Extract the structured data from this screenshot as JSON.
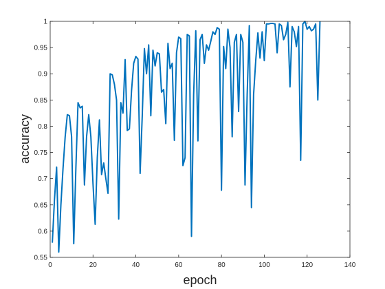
{
  "chart_data": {
    "type": "line",
    "title": "",
    "xlabel": "epoch",
    "ylabel": "accuracy",
    "xlim": [
      0,
      140
    ],
    "ylim": [
      0.55,
      1
    ],
    "x_ticks": [
      0,
      20,
      40,
      60,
      80,
      100,
      120,
      140
    ],
    "y_ticks": [
      0.55,
      0.6,
      0.65,
      0.7,
      0.75,
      0.8,
      0.85,
      0.9,
      0.95,
      1
    ],
    "x_tick_labels": [
      "0",
      "20",
      "40",
      "60",
      "80",
      "100",
      "120",
      "140"
    ],
    "y_tick_labels": [
      "0.55",
      "0.6",
      "0.65",
      "0.7",
      "0.75",
      "0.8",
      "0.85",
      "0.9",
      "0.95",
      "1"
    ],
    "grid": false,
    "box": true,
    "series": [
      {
        "color": "#0072BD",
        "x": [
          1,
          2,
          3,
          4,
          5,
          6,
          7,
          8,
          9,
          10,
          11,
          12,
          13,
          14,
          15,
          16,
          17,
          18,
          19,
          20,
          21,
          22,
          23,
          24,
          25,
          26,
          27,
          28,
          29,
          30,
          31,
          32,
          33,
          34,
          35,
          36,
          37,
          38,
          39,
          40,
          41,
          42,
          43,
          44,
          45,
          46,
          47,
          48,
          49,
          50,
          51,
          52,
          53,
          54,
          55,
          56,
          57,
          58,
          59,
          60,
          61,
          62,
          63,
          64,
          65,
          66,
          67,
          68,
          69,
          70,
          71,
          72,
          73,
          74,
          75,
          76,
          77,
          78,
          79,
          80,
          81,
          82,
          83,
          84,
          85,
          86,
          87,
          88,
          89,
          90,
          91,
          92,
          93,
          94,
          95,
          96,
          97,
          98,
          99,
          100,
          101,
          102,
          103,
          104,
          105,
          106,
          107,
          108,
          109,
          110,
          111,
          112,
          113,
          114,
          115,
          116,
          117,
          118,
          119,
          120,
          121,
          122,
          123,
          124,
          125,
          126
        ],
        "values": [
          0.578,
          0.66,
          0.722,
          0.56,
          0.65,
          0.72,
          0.78,
          0.822,
          0.82,
          0.78,
          0.576,
          0.72,
          0.845,
          0.835,
          0.838,
          0.688,
          0.78,
          0.822,
          0.78,
          0.69,
          0.613,
          0.74,
          0.812,
          0.708,
          0.73,
          0.7,
          0.672,
          0.9,
          0.898,
          0.88,
          0.85,
          0.623,
          0.845,
          0.825,
          0.927,
          0.792,
          0.795,
          0.868,
          0.92,
          0.933,
          0.928,
          0.71,
          0.82,
          0.948,
          0.9,
          0.955,
          0.82,
          0.945,
          0.915,
          0.94,
          0.938,
          0.865,
          0.87,
          0.805,
          0.958,
          0.91,
          0.92,
          0.773,
          0.94,
          0.97,
          0.967,
          0.725,
          0.74,
          0.975,
          0.972,
          0.59,
          0.86,
          0.982,
          0.772,
          0.965,
          0.975,
          0.92,
          0.955,
          0.945,
          0.962,
          0.98,
          0.975,
          0.988,
          0.985,
          0.678,
          0.952,
          0.91,
          0.985,
          0.95,
          0.78,
          0.96,
          0.975,
          0.828,
          0.975,
          0.96,
          0.688,
          0.86,
          0.992,
          0.645,
          0.86,
          0.925,
          0.978,
          0.93,
          0.98,
          0.925,
          0.995,
          0.995,
          0.996,
          0.996,
          0.995,
          0.94,
          0.995,
          0.992,
          0.965,
          0.975,
          0.998,
          0.875,
          0.99,
          0.98,
          0.952,
          0.99,
          0.735,
          0.995,
          1,
          0.985,
          0.99,
          0.982,
          0.985,
          0.995,
          0.85,
          1
        ]
      }
    ]
  }
}
